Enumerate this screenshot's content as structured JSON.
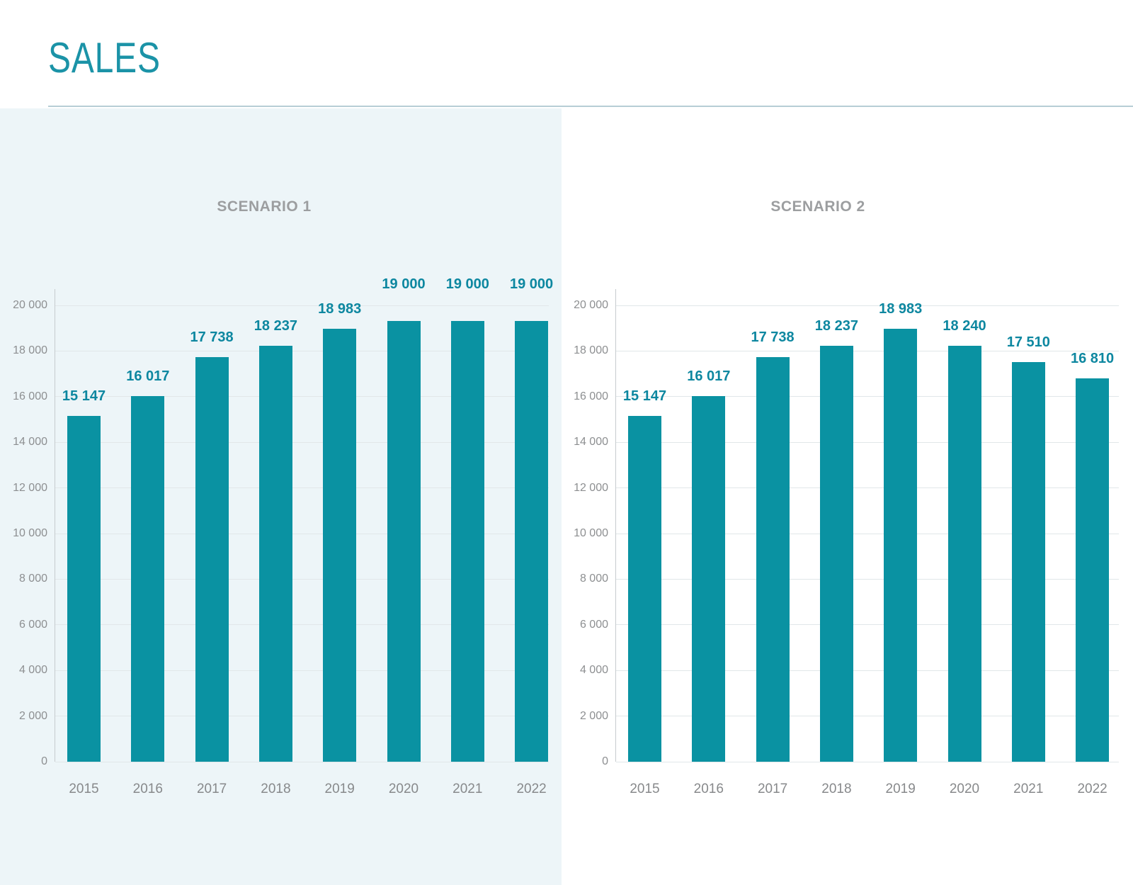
{
  "page": {
    "title": "SALES"
  },
  "theme": {
    "accent": "#0a92a2",
    "value_label_color": "#0d87a0",
    "panel_bg": "#edf5f8",
    "grid_color": "#e1e7e9",
    "axis_color": "#c6cbce",
    "tick_color": "#8d8f91",
    "xtick_color": "#87898b",
    "scenario_title_color": "#9c9ea0",
    "divider_color": "#b7cdd5",
    "title_color": "#1b93a7"
  },
  "chart_data": [
    {
      "type": "bar",
      "title": "SCENARIO 1",
      "categories": [
        "2015",
        "2016",
        "2017",
        "2018",
        "2019",
        "2020",
        "2021",
        "2022"
      ],
      "values": [
        15147,
        16017,
        17738,
        18237,
        18983,
        19000,
        19000,
        19000
      ],
      "labels": [
        "15 147",
        "16 017",
        "17 738",
        "18 237",
        "18 983",
        "19 000",
        "19 000",
        "19 000"
      ],
      "ylim": [
        0,
        20000
      ],
      "ytick_step": 2000,
      "ytick_labels": [
        "0",
        "2 000",
        "4 000",
        "6 000",
        "8 000",
        "10 000",
        "12 000",
        "14 000",
        "16 000",
        "18 000",
        "20 000"
      ],
      "grid": true,
      "legend": "none"
    },
    {
      "type": "bar",
      "title": "SCENARIO 2",
      "categories": [
        "2015",
        "2016",
        "2017",
        "2018",
        "2019",
        "2020",
        "2021",
        "2022"
      ],
      "values": [
        15147,
        16017,
        17738,
        18237,
        18983,
        18240,
        17510,
        16810
      ],
      "labels": [
        "15 147",
        "16 017",
        "17 738",
        "18 237",
        "18 983",
        "18 240",
        "17 510",
        "16 810"
      ],
      "ylim": [
        0,
        20000
      ],
      "ytick_step": 2000,
      "ytick_labels": [
        "0",
        "2 000",
        "4 000",
        "6 000",
        "8 000",
        "10 000",
        "12 000",
        "14 000",
        "16 000",
        "18 000",
        "20 000"
      ],
      "grid": true,
      "legend": "none"
    }
  ]
}
